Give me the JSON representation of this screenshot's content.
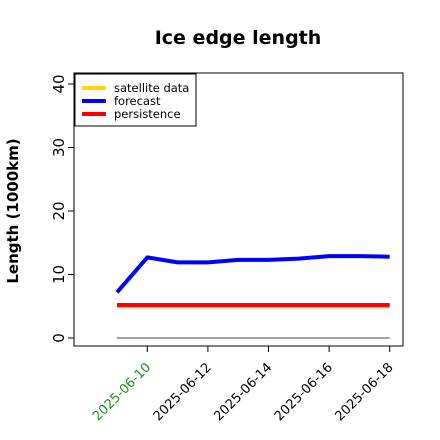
{
  "chart_data": {
    "type": "line",
    "title": "Ice edge length",
    "xlabel": "",
    "ylabel": "Length (1000km)",
    "ylim": [
      -1,
      42
    ],
    "yticks": [
      0,
      10,
      20,
      30,
      40
    ],
    "x": [
      "2025-06-09",
      "2025-06-10",
      "2025-06-11",
      "2025-06-12",
      "2025-06-13",
      "2025-06-14",
      "2025-06-15",
      "2025-06-16",
      "2025-06-17",
      "2025-06-18"
    ],
    "xtick_labels": [
      "2025-06-10",
      "2025-06-12",
      "2025-06-14",
      "2025-06-16",
      "2025-06-18"
    ],
    "xtick_colors": [
      "#228B22",
      "#000000",
      "#000000",
      "#000000",
      "#000000"
    ],
    "grid": false,
    "legend_position": "top-left",
    "series": [
      {
        "name": "satellite data",
        "color": "#FFD700",
        "values": [
          5.0,
          5.0,
          5.0,
          5.0,
          5.0,
          5.0,
          5.0,
          5.0,
          5.0,
          5.0
        ]
      },
      {
        "name": "forecast",
        "color": "#0000FF",
        "values": [
          7.2,
          12.7,
          11.9,
          11.9,
          12.3,
          12.3,
          12.5,
          12.9,
          12.9,
          12.8
        ]
      },
      {
        "name": "persistence",
        "color": "#FF0000",
        "values": [
          5.2,
          5.2,
          5.2,
          5.2,
          5.2,
          5.2,
          5.2,
          5.2,
          5.2,
          5.2
        ]
      }
    ],
    "reference_line": {
      "value": 0,
      "color": "#808080"
    }
  }
}
